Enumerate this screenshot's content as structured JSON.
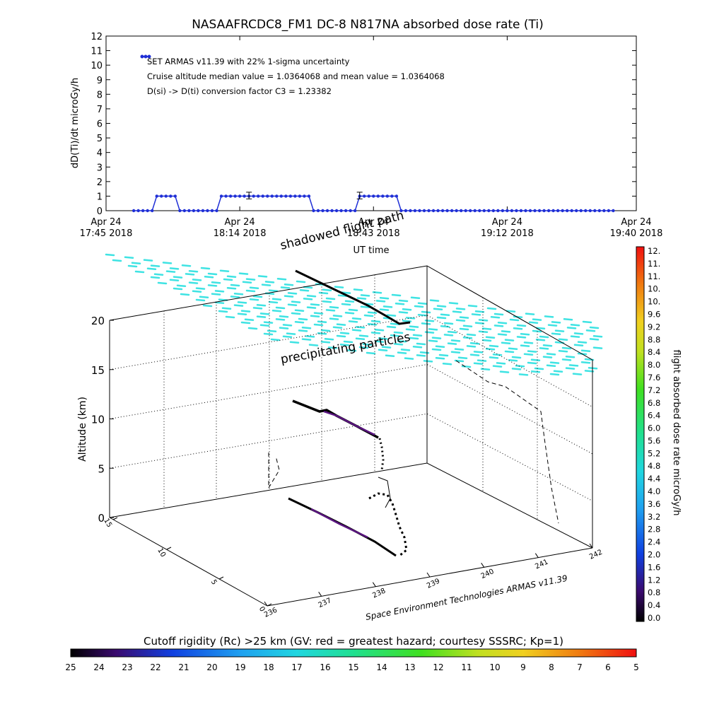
{
  "colors": {
    "series": "#1f2fd6",
    "precip": "#3fe3e3",
    "track_dark": "#000000",
    "track_purple": "#5a1580",
    "axis": "#000000"
  },
  "chart_data": [
    {
      "type": "line",
      "title": "NASAAFRCDC8_FM1 DC-8   N817NA absorbed dose rate (Ti)",
      "ylabel": "dD(Ti)/dt microGy/h",
      "xlabel": "UT time",
      "ylim": [
        0,
        12
      ],
      "yticks": [
        "0",
        "1",
        "2",
        "3",
        "4",
        "5",
        "6",
        "7",
        "8",
        "9",
        "10",
        "11",
        "12"
      ],
      "xlim_minutes": [
        0,
        115
      ],
      "xticks": [
        {
          "line1": "Apr 24",
          "line2": "17:45 2018",
          "min": 0
        },
        {
          "line1": "Apr 24",
          "line2": "18:14 2018",
          "min": 29
        },
        {
          "line1": "Apr 24",
          "line2": "18:43 2018",
          "min": 58
        },
        {
          "line1": "Apr 24",
          "line2": "19:12 2018",
          "min": 87
        },
        {
          "line1": "Apr 24",
          "line2": "19:40 2018",
          "min": 115
        }
      ],
      "legend": {
        "line1": "SET ARMAS v11.39 with 22% 1-sigma uncertainty",
        "line2": "Cruise altitude median value = 1.0364068 and mean value = 1.0364068",
        "line3": "D(si) -> D(ti) conversion factor C3 = 1.23382"
      },
      "series": [
        {
          "x_minutes": [
            6,
            7,
            8,
            9,
            10,
            11,
            12,
            13,
            14,
            15,
            16,
            17,
            18,
            19,
            20,
            21,
            22,
            23,
            24,
            25,
            26,
            27,
            28,
            29,
            30,
            31,
            32,
            33,
            34,
            35,
            36,
            37,
            38,
            39,
            40,
            41,
            42,
            43,
            44,
            45,
            46,
            47,
            48,
            49,
            50,
            51,
            52,
            53,
            54,
            55,
            56,
            57,
            58,
            59,
            60,
            61,
            62,
            63,
            64,
            65,
            66,
            67,
            68,
            69,
            70,
            71,
            72,
            73,
            74,
            75,
            76,
            77,
            78,
            79,
            80,
            81,
            82,
            83,
            84,
            85,
            86,
            87,
            88,
            89,
            90,
            91,
            92,
            93,
            94,
            95,
            96,
            97,
            98,
            99,
            100,
            101,
            102,
            103,
            104,
            105,
            106,
            107,
            108,
            109,
            110
          ],
          "values": [
            0,
            0,
            0,
            0,
            0,
            1,
            1,
            1,
            1,
            1,
            0,
            0,
            0,
            0,
            0,
            0,
            0,
            0,
            0,
            1,
            1,
            1,
            1,
            1,
            1,
            1,
            1,
            1,
            1,
            1,
            1,
            1,
            1,
            1,
            1,
            1,
            1,
            1,
            1,
            0,
            0,
            0,
            0,
            0,
            0,
            0,
            0,
            0,
            0,
            1,
            1,
            1,
            1,
            1,
            1,
            1,
            1,
            1,
            0,
            0,
            0,
            0,
            0,
            0,
            0,
            0,
            0,
            0,
            0,
            0,
            0,
            0,
            0,
            0,
            0,
            0,
            0,
            0,
            0,
            0,
            0,
            0,
            0,
            0,
            0,
            0,
            0,
            0,
            0,
            0,
            0,
            0,
            0,
            0,
            0,
            0,
            0,
            0,
            0,
            0,
            0,
            0,
            0,
            0,
            0
          ]
        }
      ],
      "error_bars": [
        {
          "x_minutes": 31,
          "value": 1.04,
          "err": 0.23
        },
        {
          "x_minutes": 55,
          "value": 1.04,
          "err": 0.23
        }
      ]
    },
    {
      "type": "scatter",
      "subtype": "3d flight track",
      "zlabel": "Altitude (km)",
      "zticks": [
        "0",
        "5",
        "10",
        "15",
        "20"
      ],
      "xticks": [
        "236",
        "237",
        "238",
        "239",
        "240",
        "241",
        "242"
      ],
      "yticks": [
        "0",
        "5",
        "10",
        "15"
      ],
      "annotations": {
        "top": "shadowed flight path",
        "precip": "precipitating particles",
        "credit": "Space Environment Technologies ARMAS v11.39"
      },
      "colorbar": {
        "label": "flight absorbed dose rate microGy/h",
        "ticks": [
          "12.",
          "11.",
          "11.",
          "10.",
          "10.",
          "9.6",
          "9.2",
          "8.8",
          "8.4",
          "8.0",
          "7.6",
          "7.2",
          "6.8",
          "6.4",
          "6.0",
          "5.6",
          "5.2",
          "4.8",
          "4.4",
          "4.0",
          "3.6",
          "3.2",
          "2.8",
          "2.4",
          "2.0",
          "1.6",
          "1.2",
          "0.8",
          "0.4",
          "0.0"
        ]
      }
    },
    {
      "type": "colorbar",
      "title": "Cutoff rigidity (Rc) >25 km (GV: red = greatest hazard; courtesy SSSRC; Kp=1)",
      "ticks": [
        "25",
        "24",
        "23",
        "22",
        "21",
        "20",
        "19",
        "18",
        "17",
        "16",
        "15",
        "14",
        "13",
        "12",
        "11",
        "10",
        "9",
        "8",
        "7",
        "6",
        "5"
      ]
    }
  ]
}
